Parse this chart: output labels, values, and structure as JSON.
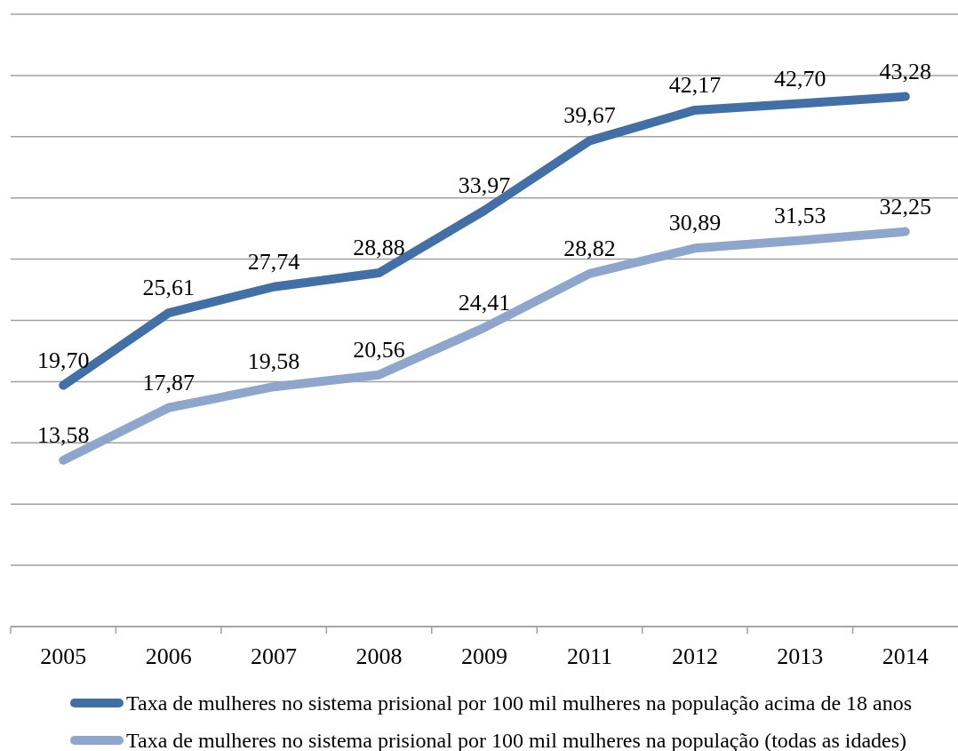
{
  "chart_data": {
    "type": "line",
    "categories": [
      "2005",
      "2006",
      "2007",
      "2008",
      "2009",
      "2011",
      "2012",
      "2013",
      "2014"
    ],
    "series": [
      {
        "name": "Taxa de mulheres no sistema prisional por 100 mil mulheres na população acima de 18 anos",
        "color": "#426fa6",
        "values": [
          19.7,
          25.61,
          27.74,
          28.88,
          33.97,
          39.67,
          42.17,
          42.7,
          43.28
        ],
        "value_labels": [
          "19,70",
          "25,61",
          "27,74",
          "28,88",
          "33,97",
          "39,67",
          "42,17",
          "42,70",
          "43,28"
        ]
      },
      {
        "name": "Taxa de mulheres no sistema prisional por 100 mil mulheres na população (todas as idades)",
        "color": "#8fa6cc",
        "values": [
          13.58,
          17.87,
          19.58,
          20.56,
          24.41,
          28.82,
          30.89,
          31.53,
          32.25
        ],
        "value_labels": [
          "13,58",
          "17,87",
          "19,58",
          "20,56",
          "24,41",
          "28,82",
          "30,89",
          "31,53",
          "32,25"
        ]
      }
    ],
    "ylim": [
      0,
      50
    ],
    "yticks": [
      {
        "value": 0,
        "label": null
      },
      {
        "value": 5,
        "label": null
      },
      {
        "value": 10,
        "label": null
      },
      {
        "value": 15,
        "label": null
      },
      {
        "value": 20,
        "label": null
      },
      {
        "value": 25,
        "label": null
      },
      {
        "value": 30,
        "label": null
      },
      {
        "value": 35,
        "label": null
      },
      {
        "value": 40,
        "label": null
      },
      {
        "value": 45,
        "label": null
      },
      {
        "value": 50,
        "label": null
      }
    ],
    "tick_labels": "x",
    "grid": "y",
    "legend": "bottom",
    "line_style": "solid"
  }
}
